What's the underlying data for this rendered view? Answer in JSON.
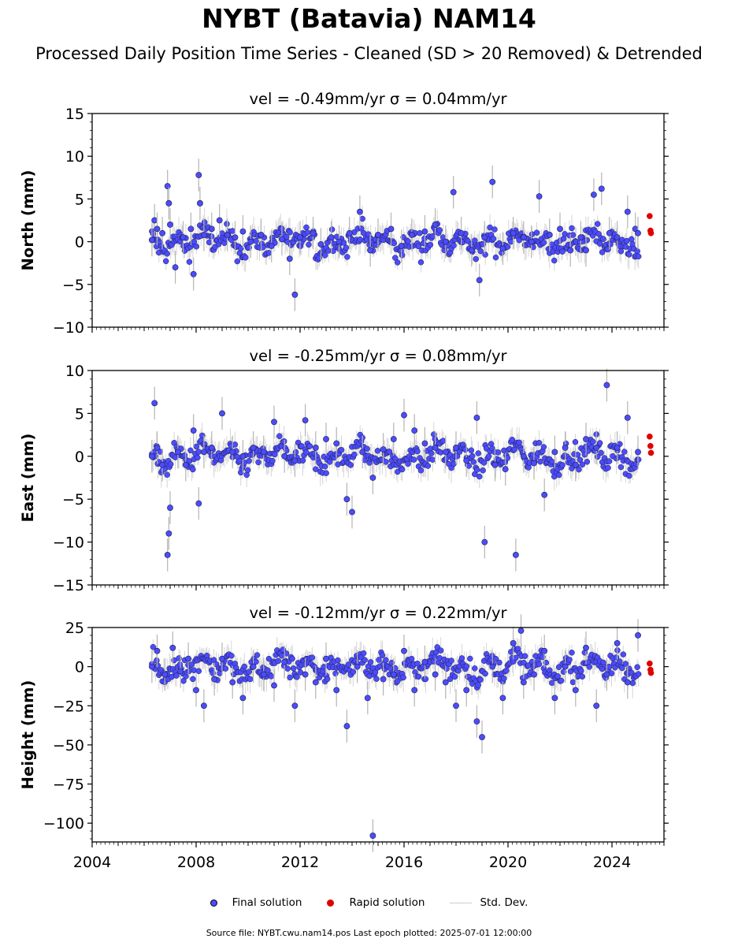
{
  "title": "NYBT (Batavia) NAM14",
  "subtitle": "Processed Daily Position Time Series - Cleaned (SD > 20 Removed) & Detrended",
  "legend": {
    "final": "Final solution",
    "rapid": "Rapid solution",
    "std": "Std. Dev."
  },
  "footer": "Source file: NYBT.cwu.nam14.pos  Last epoch plotted: 2025-07-01 12:00:00",
  "colors": {
    "final": "#4c4cff",
    "rapid": "#e00000",
    "std": "#b4b4b4"
  },
  "chart_data": [
    {
      "type": "scatter",
      "title": "vel = -0.49mm/yr   σ = 0.04mm/yr",
      "ylabel": "North (mm)",
      "ylim": [
        -10,
        15
      ],
      "yticks": [
        -10,
        -5,
        0,
        5,
        10,
        15
      ],
      "ytick_labels": [
        "−10",
        "−5",
        "0",
        "5",
        "10",
        "15"
      ],
      "xlim": [
        2004,
        2026
      ],
      "xticks": [
        2004,
        2008,
        2012,
        2016,
        2020,
        2024
      ],
      "xtick_labels": [],
      "final_series": {
        "name": "Final solution",
        "x": [
          2006.3,
          2006.4,
          2006.5,
          2006.7,
          2006.9,
          2006.95,
          2007.0,
          2007.2,
          2007.5,
          2007.8,
          2007.9,
          2008.1,
          2008.15,
          2008.3,
          2008.6,
          2008.9,
          2009.2,
          2009.5,
          2009.8,
          2010.1,
          2010.5,
          2010.9,
          2011.3,
          2011.6,
          2011.8,
          2012.0,
          2012.5,
          2012.8,
          2013.2,
          2013.5,
          2013.9,
          2014.3,
          2014.7,
          2015.0,
          2015.5,
          2015.9,
          2016.3,
          2016.8,
          2017.2,
          2017.6,
          2017.9,
          2018.2,
          2018.6,
          2018.9,
          2019.1,
          2019.4,
          2019.8,
          2020.2,
          2020.6,
          2020.9,
          2021.2,
          2021.6,
          2022.0,
          2022.4,
          2022.8,
          2023.0,
          2023.3,
          2023.6,
          2023.9,
          2024.2,
          2024.6,
          2024.9,
          2025.0
        ],
        "y": [
          0.2,
          2.5,
          1.5,
          1.0,
          6.5,
          4.5,
          2.0,
          -3.0,
          0.5,
          1.5,
          -3.8,
          7.8,
          4.5,
          0.8,
          1.5,
          2.5,
          0.8,
          0.5,
          1.2,
          0.0,
          0.8,
          -0.5,
          0.3,
          -2.0,
          -6.2,
          0.5,
          1.0,
          -0.3,
          0.5,
          0.0,
          1.0,
          3.5,
          -1.0,
          0.8,
          1.5,
          -0.5,
          0.8,
          1.2,
          2.0,
          0.0,
          5.8,
          1.0,
          -1.0,
          -4.5,
          0.5,
          7.0,
          -0.8,
          1.0,
          0.5,
          0.0,
          5.3,
          0.8,
          1.5,
          -1.0,
          0.5,
          -1.0,
          5.5,
          6.2,
          1.0,
          0.5,
          3.5,
          1.5,
          1.0
        ]
      },
      "rapid_series": {
        "name": "Rapid solution",
        "x": [
          2025.45,
          2025.48,
          2025.5
        ],
        "y": [
          3.0,
          1.3,
          1.0
        ]
      }
    },
    {
      "type": "scatter",
      "title": "vel = -0.25mm/yr   σ = 0.08mm/yr",
      "ylabel": "East (mm)",
      "ylim": [
        -15,
        10
      ],
      "yticks": [
        -15,
        -10,
        -5,
        0,
        5,
        10
      ],
      "ytick_labels": [
        "−15",
        "−10",
        "−5",
        "0",
        "5",
        "10"
      ],
      "xlim": [
        2004,
        2026
      ],
      "xticks": [
        2004,
        2008,
        2012,
        2016,
        2020,
        2024
      ],
      "xtick_labels": [],
      "final_series": {
        "name": "Final solution",
        "x": [
          2006.3,
          2006.4,
          2006.5,
          2006.7,
          2006.9,
          2006.95,
          2007.0,
          2007.3,
          2007.6,
          2007.9,
          2008.1,
          2008.3,
          2008.6,
          2009.0,
          2009.4,
          2009.8,
          2010.2,
          2010.6,
          2011.0,
          2011.4,
          2011.8,
          2012.2,
          2012.6,
          2013.0,
          2013.4,
          2013.8,
          2014.0,
          2014.4,
          2014.8,
          2015.2,
          2015.6,
          2016.0,
          2016.4,
          2016.8,
          2017.2,
          2017.6,
          2018.0,
          2018.4,
          2018.8,
          2019.1,
          2019.5,
          2019.9,
          2020.3,
          2020.6,
          2021.0,
          2021.4,
          2021.8,
          2022.2,
          2022.6,
          2023.0,
          2023.4,
          2023.8,
          2024.2,
          2024.6,
          2025.0
        ],
        "y": [
          0.0,
          6.2,
          1.0,
          -1.0,
          -11.5,
          -9.0,
          -6.0,
          0.5,
          -1.0,
          3.0,
          -5.5,
          0.5,
          1.0,
          5.0,
          0.5,
          0.0,
          1.0,
          0.5,
          4.0,
          0.0,
          -0.5,
          4.2,
          1.0,
          2.0,
          1.5,
          -5.0,
          -6.5,
          0.5,
          -2.5,
          0.8,
          2.0,
          4.8,
          3.0,
          1.5,
          1.0,
          0.5,
          1.0,
          -0.5,
          4.5,
          -10.0,
          -1.0,
          -1.5,
          -11.5,
          0.0,
          -0.8,
          -4.5,
          0.5,
          1.0,
          -1.0,
          2.0,
          1.0,
          8.3,
          1.0,
          4.5,
          0.5
        ]
      },
      "rapid_series": {
        "name": "Rapid solution",
        "x": [
          2025.45,
          2025.48,
          2025.5
        ],
        "y": [
          2.3,
          1.2,
          0.4
        ]
      }
    },
    {
      "type": "scatter",
      "title": "vel = -0.12mm/yr   σ = 0.22mm/yr",
      "ylabel": "Height (mm)",
      "ylim": [
        -112,
        25
      ],
      "yticks": [
        -100,
        -75,
        -50,
        -25,
        0,
        25
      ],
      "ytick_labels": [
        "−100",
        "−75",
        "−50",
        "−25",
        "0",
        "25"
      ],
      "xlim": [
        2004,
        2026
      ],
      "xticks": [
        2004,
        2008,
        2012,
        2016,
        2020,
        2024
      ],
      "xtick_labels": [
        "2004",
        "2008",
        "2012",
        "2016",
        "2020",
        "2024"
      ],
      "final_series": {
        "name": "Final solution",
        "x": [
          2006.3,
          2006.5,
          2006.8,
          2007.1,
          2007.4,
          2007.7,
          2008.0,
          2008.3,
          2008.7,
          2009.0,
          2009.4,
          2009.8,
          2010.2,
          2010.6,
          2011.0,
          2011.4,
          2011.8,
          2012.2,
          2012.6,
          2013.0,
          2013.4,
          2013.8,
          2014.2,
          2014.6,
          2014.8,
          2015.2,
          2015.6,
          2016.0,
          2016.4,
          2016.8,
          2017.2,
          2017.6,
          2018.0,
          2018.4,
          2018.8,
          2019.0,
          2019.4,
          2019.8,
          2020.2,
          2020.5,
          2020.6,
          2021.0,
          2021.4,
          2021.8,
          2022.2,
          2022.6,
          2023.0,
          2023.4,
          2023.8,
          2024.2,
          2024.6,
          2025.0
        ],
        "y": [
          0,
          10,
          -5,
          12,
          -3,
          5,
          -15,
          -25,
          -8,
          5,
          -10,
          -20,
          0,
          -5,
          -12,
          3,
          -25,
          -5,
          -10,
          5,
          -15,
          -38,
          0,
          -20,
          -108,
          -8,
          -5,
          10,
          -15,
          3,
          -5,
          -10,
          -25,
          -15,
          -35,
          -45,
          0,
          -20,
          15,
          23,
          -10,
          -5,
          10,
          -20,
          0,
          -15,
          12,
          -25,
          -5,
          15,
          -10,
          20
        ]
      },
      "rapid_series": {
        "name": "Rapid solution",
        "x": [
          2025.45,
          2025.48,
          2025.5
        ],
        "y": [
          2,
          -2,
          -4
        ]
      }
    }
  ]
}
